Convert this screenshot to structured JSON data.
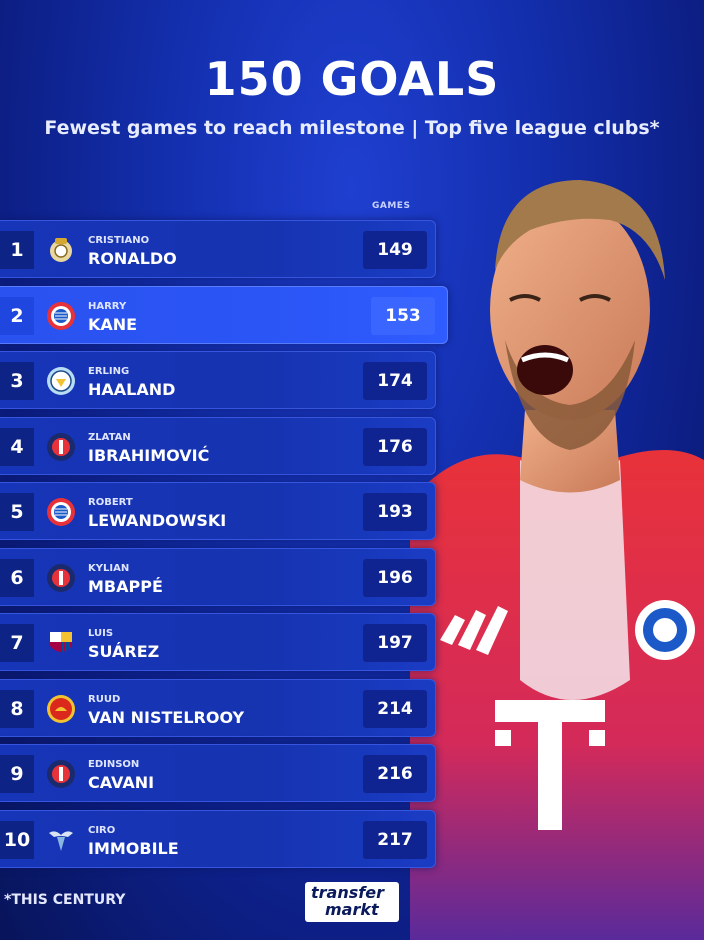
{
  "title": "150 GOALS",
  "subtitle": "Fewest games to reach milestone | Top five league clubs*",
  "column_header": "GAMES",
  "footnote": "*THIS CENTURY",
  "logo": {
    "line1": "transfer",
    "line2": "markt"
  },
  "rows": [
    {
      "rank": "1",
      "first": "CRISTIANO",
      "last": "RONALDO",
      "games": "149",
      "club_icon": "real-madrid-crest-icon"
    },
    {
      "rank": "2",
      "first": "HARRY",
      "last": "KANE",
      "games": "153",
      "club_icon": "bayern-crest-icon"
    },
    {
      "rank": "3",
      "first": "ERLING",
      "last": "HAALAND",
      "games": "174",
      "club_icon": "man-city-crest-icon"
    },
    {
      "rank": "4",
      "first": "ZLATAN",
      "last": "IBRAHIMOVIĆ",
      "games": "176",
      "club_icon": "psg-crest-icon"
    },
    {
      "rank": "5",
      "first": "ROBERT",
      "last": "LEWANDOWSKI",
      "games": "193",
      "club_icon": "bayern-crest-icon"
    },
    {
      "rank": "6",
      "first": "KYLIAN",
      "last": "MBAPPÉ",
      "games": "196",
      "club_icon": "psg-crest-icon"
    },
    {
      "rank": "7",
      "first": "LUIS",
      "last": "SUÁREZ",
      "games": "197",
      "club_icon": "barcelona-crest-icon"
    },
    {
      "rank": "8",
      "first": "RUUD",
      "last": "VAN NISTELROOY",
      "games": "214",
      "club_icon": "man-united-crest-icon"
    },
    {
      "rank": "9",
      "first": "EDINSON",
      "last": "CAVANI",
      "games": "216",
      "club_icon": "psg-crest-icon"
    },
    {
      "rank": "10",
      "first": "CIRO",
      "last": "IMMOBILE",
      "games": "217",
      "club_icon": "lazio-crest-icon"
    }
  ]
}
